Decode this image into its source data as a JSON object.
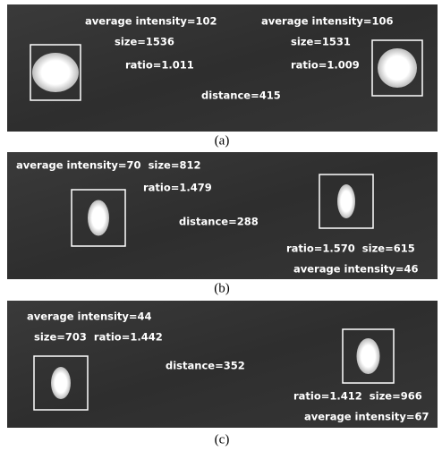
{
  "panels": [
    {
      "caption": "(a)",
      "labels": [
        "average intensity=102",
        "size=1536",
        "ratio=1.011",
        "average intensity=106",
        "size=1531",
        "ratio=1.009",
        "distance=415"
      ]
    },
    {
      "caption": "(b)",
      "labels": [
        "average intensity=70  size=812",
        "ratio=1.479",
        "distance=288",
        "ratio=1.570  size=615",
        "average intensity=46"
      ]
    },
    {
      "caption": "(c)",
      "labels": [
        "average intensity=44",
        "size=703  ratio=1.442",
        "distance=352",
        "ratio=1.412  size=966",
        "average intensity=67"
      ]
    }
  ]
}
